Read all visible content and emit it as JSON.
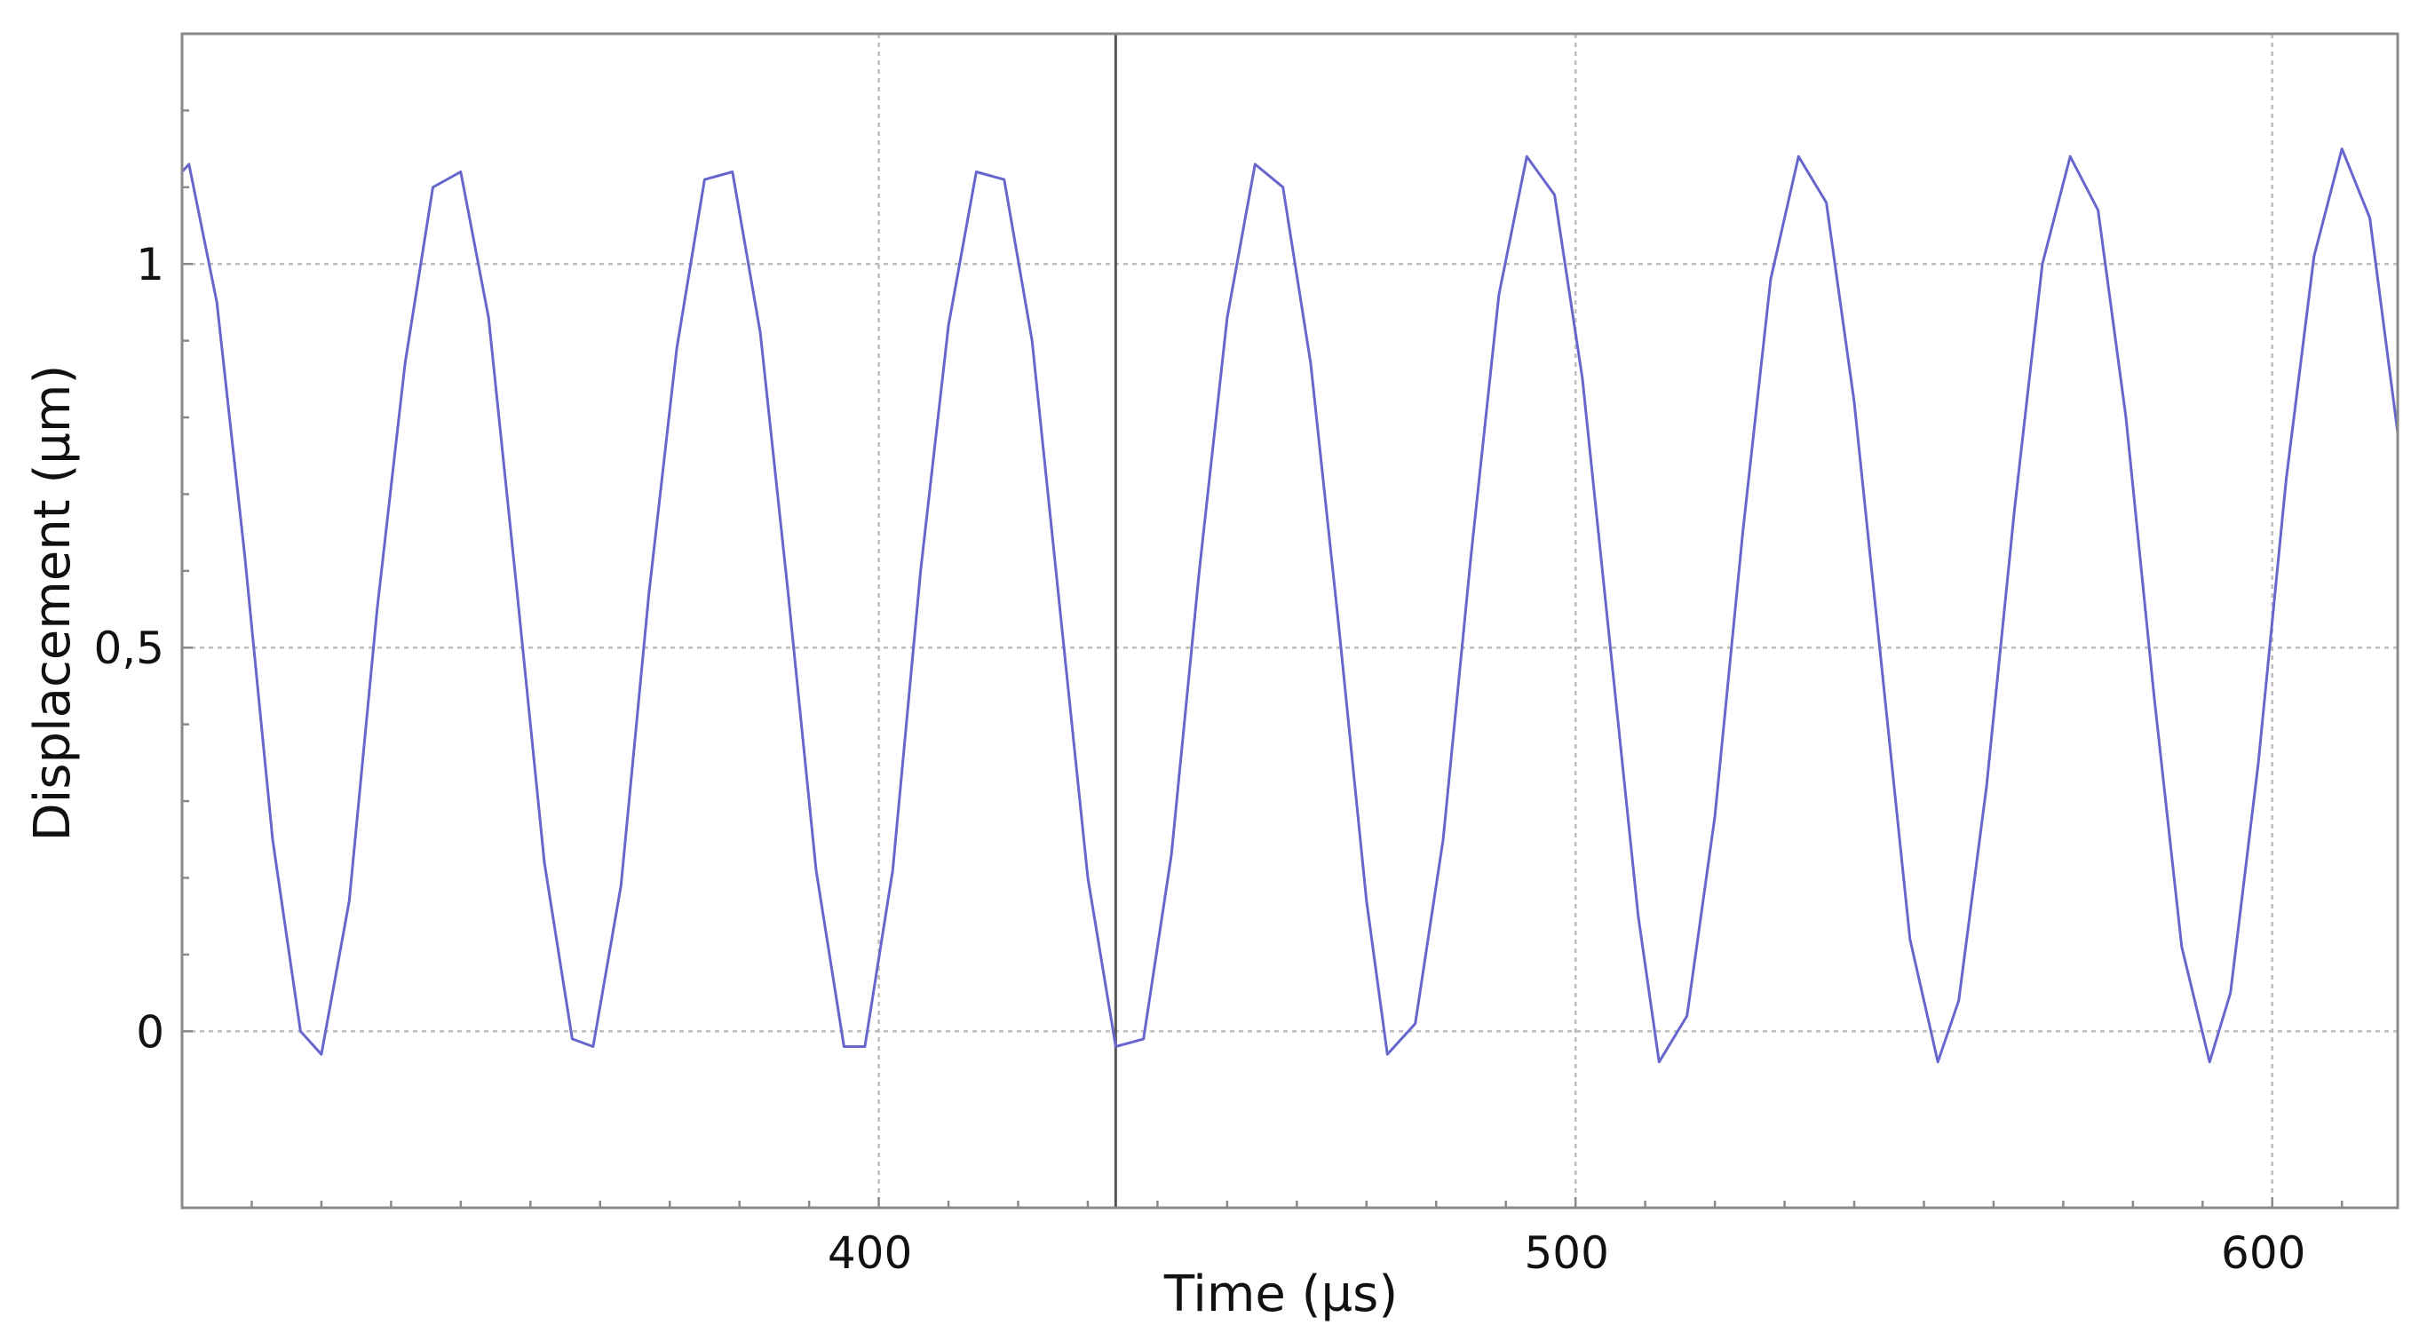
{
  "chart_data": {
    "type": "line",
    "title": "",
    "xlabel": "Time (µs)",
    "ylabel": "Displacement (µm)",
    "xlim": [
      300,
      618
    ],
    "ylim": [
      -0.23,
      1.3
    ],
    "x_ticks": [
      400,
      500,
      600
    ],
    "x_tick_labels": [
      "400",
      "500",
      "600"
    ],
    "y_ticks": [
      0,
      0.5,
      1
    ],
    "y_tick_labels": [
      "0",
      "0,5",
      "1"
    ],
    "grid": true,
    "cursor_x": 434,
    "line_color": "#6666cc",
    "series": [
      {
        "x": [
          300,
          301,
          305,
          309,
          313,
          317,
          320,
          324,
          328,
          332,
          336,
          340,
          344,
          348,
          352,
          356,
          359,
          363,
          367,
          371,
          375,
          379,
          383,
          387,
          391,
          395,
          398,
          402,
          406,
          410,
          414,
          418,
          422,
          426,
          430,
          434,
          438,
          442,
          446,
          450,
          454,
          458,
          462,
          466,
          470,
          473,
          477,
          481,
          485,
          489,
          493,
          497,
          501,
          505,
          509,
          512,
          516,
          520,
          524,
          528,
          532,
          536,
          540,
          544,
          548,
          552,
          555,
          559,
          563,
          567,
          571,
          575,
          579,
          583,
          587,
          591,
          594,
          598,
          602,
          606,
          610,
          614,
          618
        ],
        "y": [
          1.12,
          1.13,
          0.95,
          0.62,
          0.25,
          0.0,
          -0.03,
          0.17,
          0.55,
          0.87,
          1.1,
          1.12,
          0.93,
          0.58,
          0.22,
          -0.01,
          -0.02,
          0.19,
          0.57,
          0.89,
          1.11,
          1.12,
          0.91,
          0.57,
          0.21,
          -0.02,
          -0.02,
          0.21,
          0.6,
          0.92,
          1.12,
          1.11,
          0.9,
          0.55,
          0.2,
          -0.02,
          -0.01,
          0.23,
          0.6,
          0.93,
          1.13,
          1.1,
          0.87,
          0.53,
          0.17,
          -0.03,
          0.01,
          0.25,
          0.62,
          0.96,
          1.14,
          1.09,
          0.85,
          0.5,
          0.15,
          -0.04,
          0.02,
          0.28,
          0.65,
          0.98,
          1.14,
          1.08,
          0.82,
          0.47,
          0.12,
          -0.04,
          0.04,
          0.32,
          0.68,
          1.0,
          1.14,
          1.07,
          0.8,
          0.44,
          0.11,
          -0.04,
          0.05,
          0.35,
          0.72,
          1.01,
          1.15,
          1.06,
          0.78
        ]
      }
    ]
  }
}
